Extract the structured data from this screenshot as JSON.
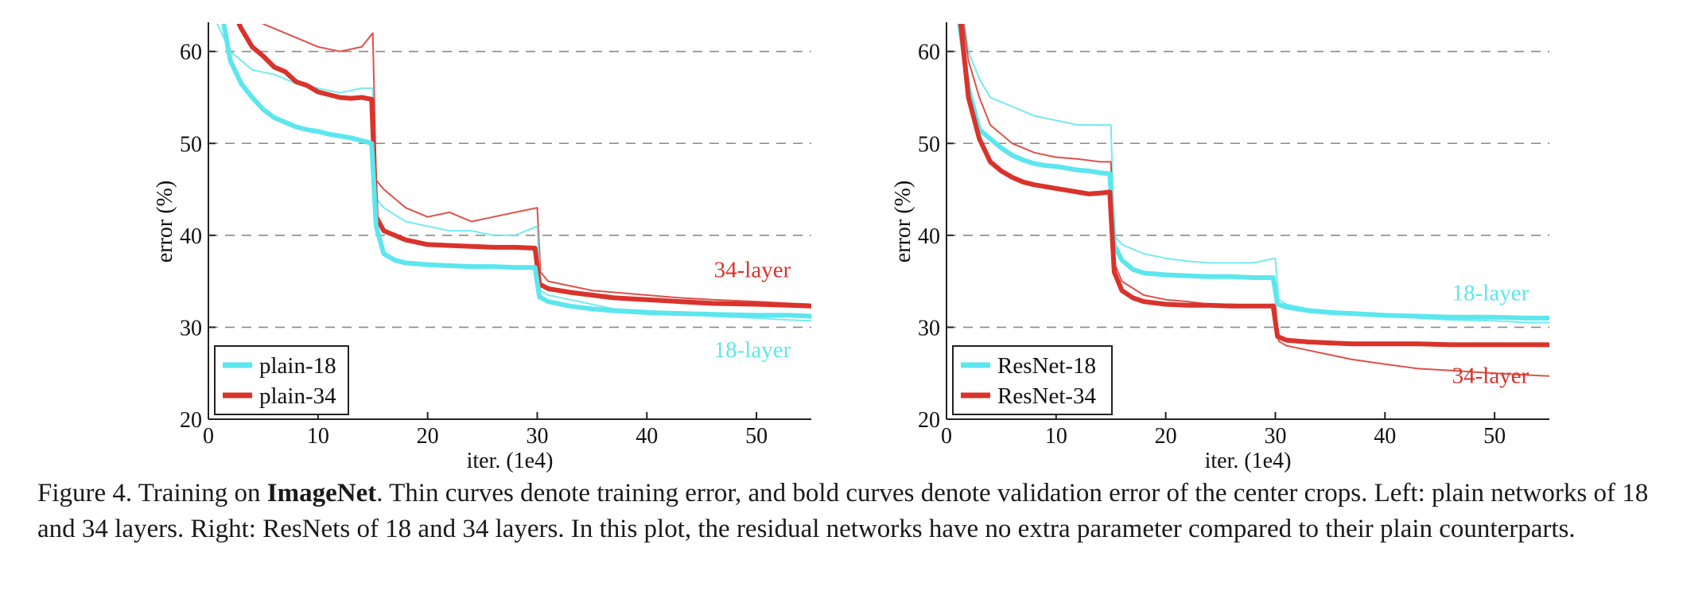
{
  "chart_data": [
    {
      "type": "line",
      "panel": "left",
      "xlabel": "iter. (1e4)",
      "ylabel": "error (%)",
      "xlim": [
        0,
        55
      ],
      "ylim": [
        20,
        63
      ],
      "xticks": [
        "0",
        "10",
        "20",
        "30",
        "40",
        "50"
      ],
      "yticks": [
        "20",
        "30",
        "40",
        "50",
        "60"
      ],
      "grid": "horizontal dashed",
      "legend_position": "bottom-left",
      "legend": [
        {
          "label": "plain-18",
          "color": "#5ce6ee"
        },
        {
          "label": "plain-34",
          "color": "#d9332b"
        }
      ],
      "annotations": [
        {
          "text": "34-layer",
          "color": "#d9332b",
          "x": 46,
          "y": 36.3
        },
        {
          "text": "18-layer",
          "color": "#5ce6ee",
          "x": 46,
          "y": 27.6
        }
      ],
      "series": [
        {
          "name": "plain-34",
          "kind": "train",
          "color": "#d9332b",
          "x": [
            0,
            5,
            6,
            8,
            10,
            12,
            14,
            15,
            15.3,
            16,
            18,
            20,
            22,
            24,
            26,
            28,
            30,
            30.3,
            31,
            33,
            35,
            37,
            40,
            43,
            46,
            50,
            53,
            55
          ],
          "y": [
            75,
            63,
            62.5,
            61.5,
            60.5,
            60,
            60.5,
            62,
            46,
            45,
            43,
            42,
            42.5,
            41.5,
            42,
            42.5,
            43,
            36,
            35,
            34.5,
            34,
            33.8,
            33.5,
            33.2,
            33,
            32.8,
            32.6,
            32.5
          ]
        },
        {
          "name": "plain-18",
          "kind": "train",
          "color": "#5ce6ee",
          "x": [
            0,
            2,
            3,
            4,
            6,
            8,
            10,
            12,
            14,
            15,
            15.3,
            16,
            18,
            20,
            22,
            24,
            26,
            28,
            30,
            30.3,
            31,
            33,
            35,
            37,
            40,
            43,
            46,
            50,
            53,
            55
          ],
          "y": [
            65,
            60,
            59,
            58,
            57.5,
            56.5,
            56,
            55.5,
            56,
            56,
            44,
            43,
            41.5,
            41,
            40.5,
            40.5,
            40,
            40,
            41,
            34,
            33.5,
            33,
            32.5,
            32,
            31.8,
            31.5,
            31.2,
            31,
            30.8,
            30.7
          ]
        },
        {
          "name": "plain-34",
          "kind": "val",
          "color": "#d9332b",
          "x": [
            2.8,
            3,
            4,
            5,
            6,
            7,
            8,
            9,
            10,
            11,
            12,
            13,
            14,
            14.9,
            15.3,
            16,
            17,
            18,
            20,
            22,
            24,
            26,
            28,
            29.8,
            30.2,
            31,
            33,
            35,
            37,
            40,
            43,
            46,
            50,
            53,
            55
          ],
          "y": [
            63,
            62.5,
            60.5,
            59.5,
            58.3,
            57.8,
            56.7,
            56.3,
            55.6,
            55.3,
            55,
            54.9,
            55,
            54.8,
            42,
            40.5,
            40,
            39.5,
            39,
            38.9,
            38.8,
            38.7,
            38.7,
            38.6,
            34.7,
            34.2,
            33.8,
            33.5,
            33.2,
            33,
            32.8,
            32.6,
            32.5,
            32.4,
            32.3
          ]
        },
        {
          "name": "plain-18",
          "kind": "val",
          "color": "#5ce6ee",
          "x": [
            1.4,
            2,
            3,
            4,
            5,
            6,
            7,
            8,
            9,
            10,
            11,
            12,
            13,
            14,
            14.9,
            15.3,
            16,
            17,
            18,
            20,
            22,
            24,
            26,
            28,
            29.8,
            30.2,
            31,
            33,
            35,
            37,
            40,
            43,
            46,
            50,
            53,
            55
          ],
          "y": [
            63,
            59,
            56.5,
            55,
            53.7,
            52.8,
            52.3,
            51.8,
            51.5,
            51.3,
            51,
            50.8,
            50.6,
            50.3,
            50,
            41,
            38,
            37.3,
            37,
            36.8,
            36.7,
            36.6,
            36.6,
            36.5,
            36.5,
            33.3,
            32.8,
            32.3,
            32,
            31.8,
            31.6,
            31.5,
            31.4,
            31.3,
            31.3,
            31.2
          ]
        }
      ]
    },
    {
      "type": "line",
      "panel": "right",
      "xlabel": "iter. (1e4)",
      "ylabel": "error (%)",
      "xlim": [
        0,
        55
      ],
      "ylim": [
        20,
        63
      ],
      "xticks": [
        "0",
        "10",
        "20",
        "30",
        "40",
        "50"
      ],
      "yticks": [
        "20",
        "30",
        "40",
        "50",
        "60"
      ],
      "grid": "horizontal dashed",
      "legend_position": "bottom-left",
      "legend": [
        {
          "label": "ResNet-18",
          "color": "#5ce6ee"
        },
        {
          "label": "ResNet-34",
          "color": "#d9332b"
        }
      ],
      "annotations": [
        {
          "text": "18-layer",
          "color": "#5ce6ee",
          "x": 46,
          "y": 33.8
        },
        {
          "text": "34-layer",
          "color": "#d9332b",
          "x": 46,
          "y": 24.8
        }
      ],
      "series": [
        {
          "name": "ResNet-18",
          "kind": "train",
          "color": "#5ce6ee",
          "x": [
            1,
            2,
            3,
            4,
            6,
            8,
            10,
            12,
            14,
            15,
            15.3,
            16,
            18,
            20,
            22,
            24,
            26,
            28,
            30,
            30.3,
            31,
            33,
            35,
            37,
            40,
            43,
            46,
            50,
            53,
            55
          ],
          "y": [
            68,
            60,
            57,
            55,
            54,
            53,
            52.5,
            52,
            52,
            52,
            40,
            39,
            38,
            37.5,
            37.2,
            37,
            37,
            37,
            37.5,
            33,
            32.5,
            32,
            31.8,
            31.5,
            31.3,
            31,
            30.8,
            30.7,
            30.5,
            30.5
          ]
        },
        {
          "name": "ResNet-34",
          "kind": "train",
          "color": "#d9332b",
          "x": [
            1,
            2,
            3,
            4,
            6,
            8,
            10,
            12,
            14,
            15,
            15.3,
            16,
            18,
            20,
            22,
            24,
            26,
            28,
            30,
            30.3,
            31,
            33,
            35,
            37,
            40,
            43,
            46,
            50,
            53,
            55
          ],
          "y": [
            68,
            59,
            55,
            52,
            50,
            49,
            48.5,
            48.3,
            48,
            48,
            37,
            35,
            33.5,
            33,
            32.8,
            32.5,
            32.5,
            32.3,
            32.5,
            28.5,
            28,
            27.5,
            27,
            26.5,
            26,
            25.5,
            25.3,
            25,
            24.8,
            24.7
          ]
        },
        {
          "name": "ResNet-18",
          "kind": "val",
          "color": "#5ce6ee",
          "x": [
            1.2,
            2,
            3,
            4,
            5,
            6,
            7,
            8,
            9,
            10,
            11,
            12,
            13,
            14,
            14.9,
            15.3,
            16,
            17,
            18,
            20,
            22,
            24,
            26,
            28,
            29.8,
            30.2,
            31,
            33,
            35,
            37,
            40,
            43,
            46,
            50,
            53,
            55
          ],
          "y": [
            63,
            56,
            51.5,
            50.5,
            49.5,
            48.7,
            48.2,
            47.8,
            47.6,
            47.5,
            47.3,
            47.1,
            47,
            46.8,
            46.7,
            39,
            37.3,
            36.3,
            35.9,
            35.7,
            35.6,
            35.5,
            35.5,
            35.4,
            35.4,
            32.5,
            32.2,
            31.8,
            31.6,
            31.5,
            31.3,
            31.2,
            31.1,
            31.1,
            31,
            31
          ]
        },
        {
          "name": "ResNet-34",
          "kind": "val",
          "color": "#d9332b",
          "x": [
            1.3,
            2,
            3,
            4,
            5,
            6,
            7,
            8,
            9,
            10,
            11,
            12,
            13,
            14,
            14.9,
            15.3,
            16,
            17,
            18,
            20,
            22,
            24,
            26,
            28,
            29.8,
            30.2,
            31,
            33,
            35,
            37,
            40,
            43,
            46,
            50,
            53,
            55
          ],
          "y": [
            63,
            55,
            50.5,
            48,
            47,
            46.3,
            45.8,
            45.5,
            45.3,
            45.1,
            44.9,
            44.7,
            44.5,
            44.6,
            44.7,
            36,
            34,
            33.2,
            32.8,
            32.5,
            32.4,
            32.4,
            32.3,
            32.3,
            32.3,
            29,
            28.6,
            28.4,
            28.3,
            28.2,
            28.2,
            28.2,
            28.1,
            28.1,
            28.1,
            28.1
          ]
        }
      ]
    }
  ],
  "caption": {
    "prefix": "Figure 4. Training on ",
    "bold": "ImageNet",
    "rest": ". Thin curves denote training error, and bold curves denote validation error of the center crops. Left: plain networks of 18 and 34 layers. Right: ResNets of 18 and 34 layers. In this plot, the residual networks have no extra parameter compared to their plain counterparts."
  }
}
